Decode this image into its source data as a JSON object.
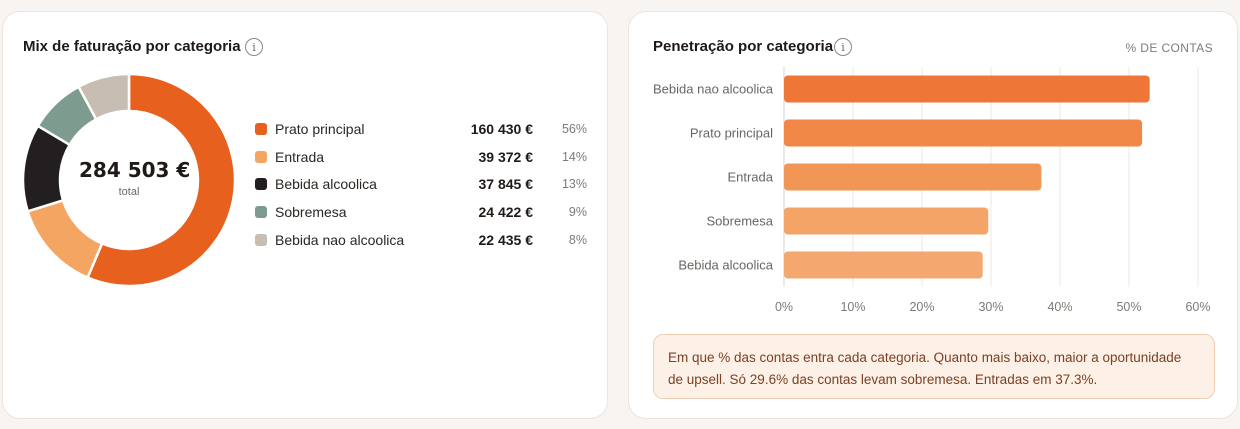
{
  "left_card": {
    "title": "Mix de faturação por categoria",
    "info_glyph": "i",
    "total_value": "284 503 €",
    "total_caption": "total",
    "legend": [
      {
        "label": "Prato principal",
        "value": "160 430 €",
        "pct": "56%",
        "color": "#e8601e"
      },
      {
        "label": "Entrada",
        "value": "39 372 €",
        "pct": "14%",
        "color": "#f3a561"
      },
      {
        "label": "Bebida alcoolica",
        "value": "37 845 €",
        "pct": "13%",
        "color": "#231f20"
      },
      {
        "label": "Sobremesa",
        "value": "24 422 €",
        "pct": "9%",
        "color": "#7e9b90"
      },
      {
        "label": "Bebida nao alcoolica",
        "value": "22 435 €",
        "pct": "8%",
        "color": "#c8bdb2"
      }
    ]
  },
  "right_card": {
    "title": "Penetração por categoria",
    "info_glyph": "i",
    "unit_label": "% DE CONTAS",
    "note": "Em que % das contas entra cada categoria. Quanto mais baixo, maior a oportunidade de upsell. Só 29.6% das contas levam sobremesa. Entradas em 37.3%."
  },
  "chart_data": [
    {
      "type": "pie",
      "title": "Mix de faturação por categoria",
      "categories": [
        "Prato principal",
        "Entrada",
        "Bebida alcoolica",
        "Sobremesa",
        "Bebida nao alcoolica"
      ],
      "values": [
        160430,
        39372,
        37845,
        24422,
        22435
      ],
      "colors": [
        "#e8601e",
        "#f3a561",
        "#231f20",
        "#7e9b90",
        "#c8bdb2"
      ],
      "donut": true,
      "center_label": "284 503 €"
    },
    {
      "type": "bar",
      "orientation": "horizontal",
      "title": "Penetração por categoria",
      "categories": [
        "Bebida nao alcoolica",
        "Prato principal",
        "Entrada",
        "Sobremesa",
        "Bebida alcoolica"
      ],
      "values": [
        53.0,
        51.9,
        37.3,
        29.6,
        28.8
      ],
      "colors": [
        "#ee7738",
        "#f08747",
        "#f29656",
        "#f3a466",
        "#f3a870"
      ],
      "xlim": [
        0,
        60
      ],
      "xticks": [
        "0%",
        "10%",
        "20%",
        "30%",
        "40%",
        "50%",
        "60%"
      ],
      "grid": true
    }
  ]
}
